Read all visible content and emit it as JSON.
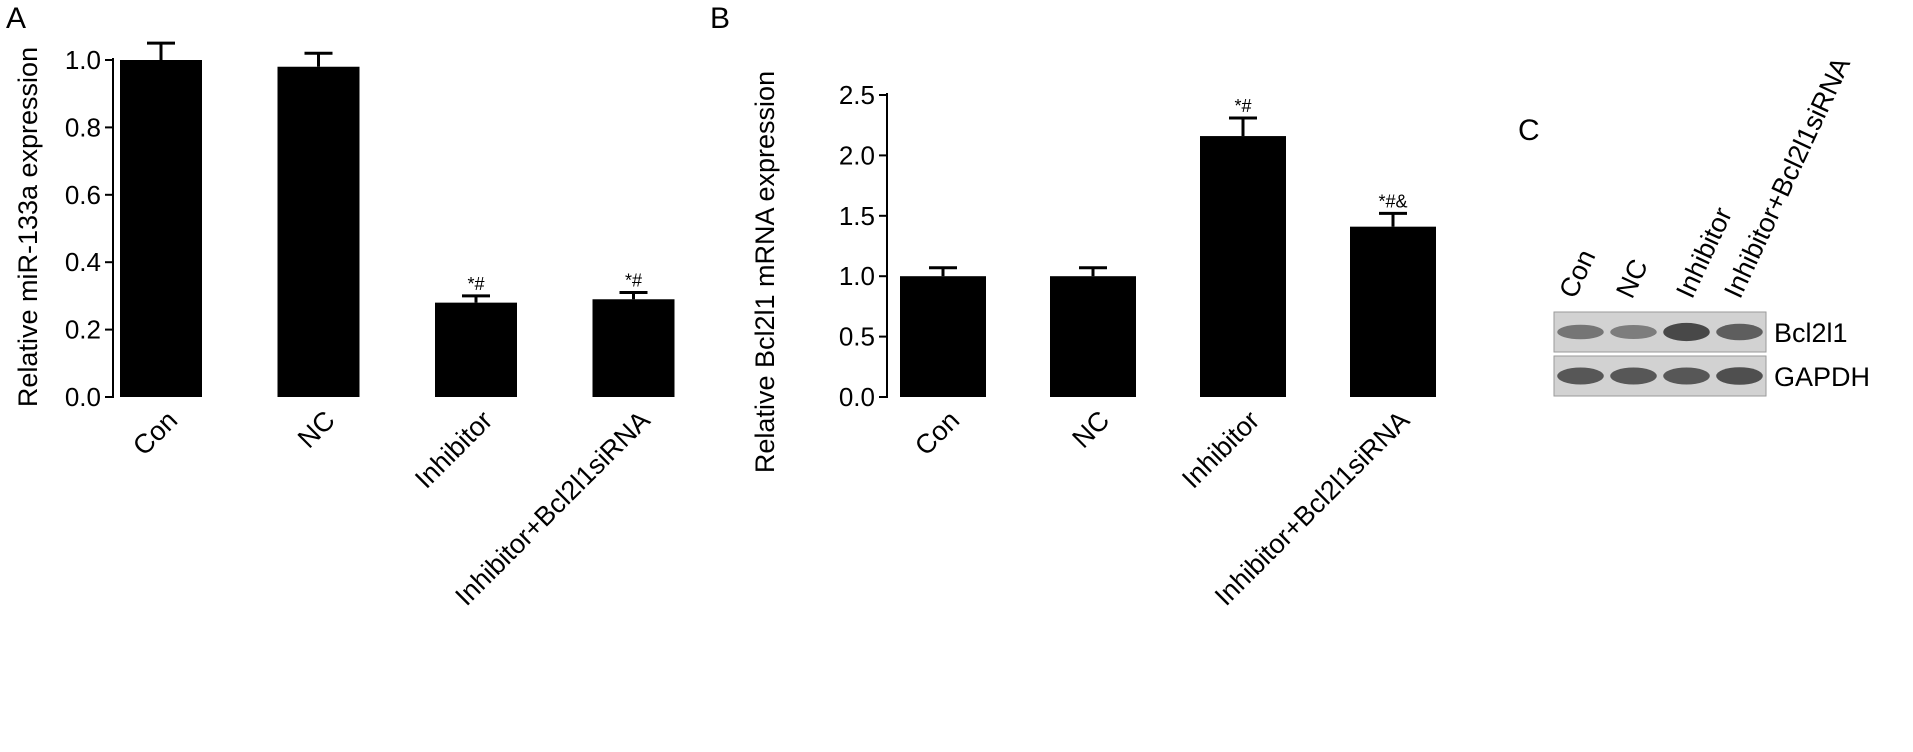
{
  "chart_data": [
    {
      "type": "bar",
      "panel": "A",
      "ylabel": "Relative miR-133a expression",
      "categories": [
        "Con",
        "NC",
        "Inhibitor",
        "Inhibitor+Bcl2l1siRNA"
      ],
      "values": [
        1.0,
        0.98,
        0.28,
        0.29
      ],
      "errors": [
        0.05,
        0.04,
        0.02,
        0.02
      ],
      "annotations": [
        "",
        "",
        "*#",
        "*#"
      ],
      "ylim": [
        0,
        1.0
      ],
      "yticks": [
        "0.0",
        "0.2",
        "0.4",
        "0.6",
        "0.8",
        "1.0"
      ],
      "grid": false,
      "bar_color": "#000000"
    },
    {
      "type": "bar",
      "panel": "B",
      "ylabel": "Relative Bcl2l1 mRNA expression",
      "categories": [
        "Con",
        "NC",
        "Inhibitor",
        "Inhibitor+Bcl2l1siRNA"
      ],
      "values": [
        1.0,
        1.0,
        2.16,
        1.41
      ],
      "errors": [
        0.07,
        0.07,
        0.15,
        0.11
      ],
      "annotations": [
        "",
        "",
        "*#",
        "*#&"
      ],
      "ylim": [
        0,
        2.5
      ],
      "yticks": [
        "0.0",
        "0.5",
        "1.0",
        "1.5",
        "2.0",
        "2.5"
      ],
      "grid": false,
      "bar_color": "#000000"
    }
  ],
  "blot": {
    "panel": "C",
    "lanes": [
      "Con",
      "NC",
      "Inhibitor",
      "Inhibitor+Bcl2l1siRNA"
    ],
    "rows": [
      {
        "label": "Bcl2l1",
        "intensity": [
          0.55,
          0.5,
          0.85,
          0.7
        ]
      },
      {
        "label": "GAPDH",
        "intensity": [
          0.75,
          0.75,
          0.75,
          0.8
        ]
      }
    ]
  }
}
